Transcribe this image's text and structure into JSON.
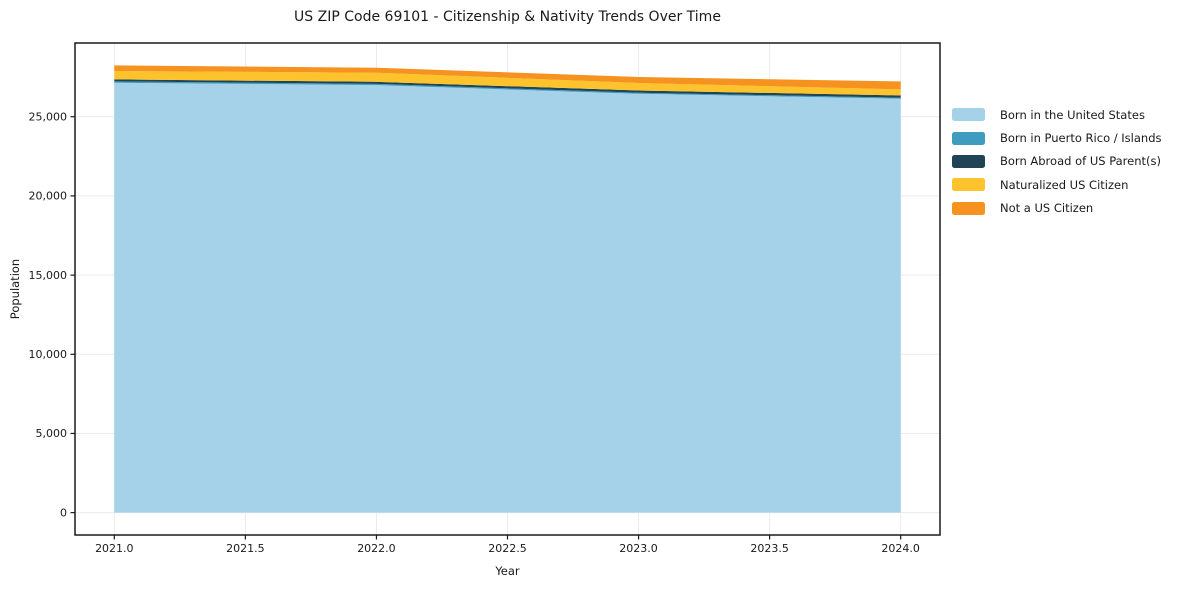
{
  "chart_data": {
    "type": "area",
    "stacked": true,
    "title": "US ZIP Code 69101 - Citizenship & Nativity Trends Over Time",
    "xlabel": "Year",
    "ylabel": "Population",
    "x": [
      2021,
      2022,
      2023,
      2024
    ],
    "series": [
      {
        "name": "Born in the United States",
        "color": "#A5D2E8",
        "values": [
          27150,
          27000,
          26450,
          26140
        ]
      },
      {
        "name": "Born in Puerto Rico / Islands",
        "color": "#3E9DBE",
        "values": [
          80,
          75,
          70,
          65
        ]
      },
      {
        "name": "Born Abroad of US Parent(s)",
        "color": "#1F4456",
        "values": [
          130,
          135,
          140,
          145
        ]
      },
      {
        "name": "Naturalized US Citizen",
        "color": "#FCC32D",
        "values": [
          530,
          570,
          470,
          380
        ]
      },
      {
        "name": "Not a US Citizen",
        "color": "#F6921F",
        "values": [
          355,
          315,
          380,
          505
        ]
      }
    ],
    "xticks": [
      2021.0,
      2021.5,
      2022.0,
      2022.5,
      2023.0,
      2023.5,
      2024.0
    ],
    "xtick_labels": [
      "2021.0",
      "2021.5",
      "2022.0",
      "2022.5",
      "2023.0",
      "2023.5",
      "2024.0"
    ],
    "yticks": [
      0,
      5000,
      10000,
      15000,
      20000,
      25000
    ],
    "ytick_labels": [
      "0",
      "5,000",
      "10,000",
      "15,000",
      "20,000",
      "25,000"
    ],
    "xlim": [
      2020.85,
      2024.15
    ],
    "ylim": [
      -1412,
      29657
    ],
    "grid": true,
    "grid_color": "#ebebeb",
    "axis_color": "#1a1a1a",
    "background": "#ffffff",
    "legend_position": "right"
  }
}
